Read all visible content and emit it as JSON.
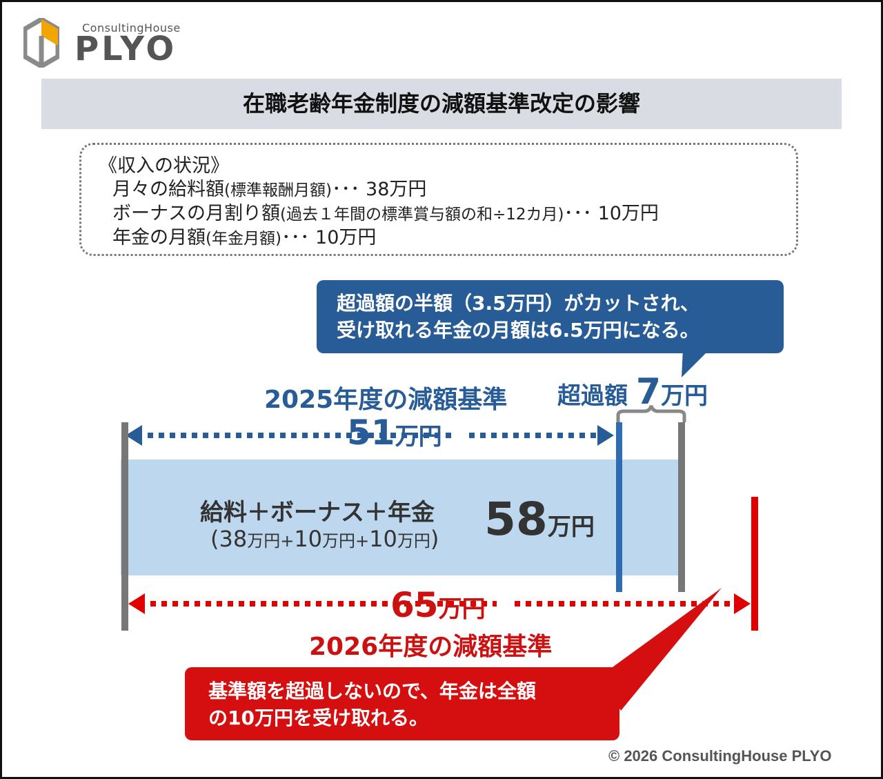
{
  "logo": {
    "sub": "ConsultingHouse",
    "main": "PLYO"
  },
  "title": "在職老齢年金制度の減額基準改定の影響",
  "income": {
    "heading": "《収入の状況》",
    "salary": {
      "label": "月々の給料額",
      "note": "(標準報酬月額)",
      "dots": "･･･",
      "amount": "38万円"
    },
    "bonus": {
      "label": "ボーナスの月割り額",
      "note": "(過去１年間の標準賞与額の和÷12カ月)",
      "dots": "･･･",
      "amount": "10万円"
    },
    "pension": {
      "label": "年金の月額",
      "note": "(年金月額)",
      "dots": "･･･",
      "amount": "10万円"
    }
  },
  "callout_blue": {
    "line1": "超過額の半額（3.5万円）がカットされ、",
    "line2": "受け取れる年金の月額は6.5万円になる。"
  },
  "label_2025": "2025年度の減額基準",
  "excess": {
    "prefix": "超過額",
    "value": "7",
    "unit": "万円"
  },
  "threshold_2025": {
    "value": "51",
    "unit": "万円"
  },
  "bar": {
    "title": "給料＋ボーナス＋年金",
    "sub_open": "(",
    "v1": "38",
    "u1": "万円",
    "plus1": "+",
    "v2": "10",
    "u2": "万円",
    "plus2": "+",
    "v3": "10",
    "u3": "万円",
    "sub_close": ")",
    "total_value": "58",
    "total_unit": "万円"
  },
  "threshold_2026": {
    "value": "65",
    "unit": "万円"
  },
  "label_2026": "2026年度の減額基準",
  "callout_red": {
    "line1": "基準額を超過しないので、年金は全額",
    "line2": "の10万円を受け取れる。"
  },
  "copyright": "© 2026 ConsultingHouse PLYO",
  "colors": {
    "blue": "#275c96",
    "red": "#d50f0f",
    "bar": "#bdd7ee",
    "band": "#d9dde3"
  }
}
